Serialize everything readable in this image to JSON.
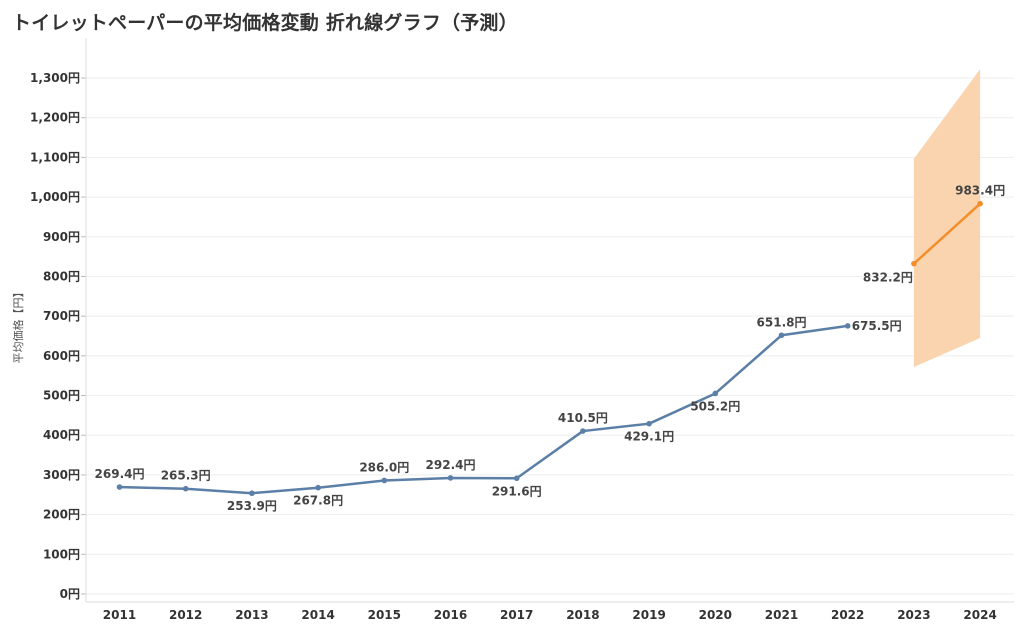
{
  "title": "トイレットペーパーの平均価格変動 折れ線グラフ（予測）",
  "colors": {
    "actual": "#5b7fa6",
    "forecast": "#f28e2b",
    "band": "#f9cfa5",
    "grid": "#eeeeee",
    "text": "#333333"
  },
  "chart_data": {
    "type": "line",
    "title": "トイレットペーパーの平均価格変動 折れ線グラフ（予測）",
    "xlabel": "",
    "ylabel": "平均価格【円】",
    "ylim": [
      0,
      1300
    ],
    "yticks": [
      0,
      100,
      200,
      300,
      400,
      500,
      600,
      700,
      800,
      900,
      1000,
      1100,
      1200,
      1300
    ],
    "ytick_labels": [
      "0円",
      "100円",
      "200円",
      "300円",
      "400円",
      "500円",
      "600円",
      "700円",
      "800円",
      "900円",
      "1,000円",
      "1,100円",
      "1,200円",
      "1,300円"
    ],
    "categories": [
      "2011",
      "2012",
      "2013",
      "2014",
      "2015",
      "2016",
      "2017",
      "2018",
      "2019",
      "2020",
      "2021",
      "2022",
      "2023",
      "2024"
    ],
    "grid": true,
    "series": [
      {
        "values": [
          269.4,
          265.3,
          253.9,
          267.8,
          286.0,
          292.4,
          291.6,
          410.5,
          429.1,
          505.2,
          651.8,
          675.5,
          null,
          null
        ],
        "labels": [
          "269.4円",
          "265.3円",
          "253.9円",
          "267.8円",
          "286.0円",
          "292.4円",
          "291.6円",
          "410.5円",
          "429.1円",
          "505.2円",
          "651.8円",
          "675.5円",
          "",
          ""
        ],
        "label_pos": [
          "above",
          "above",
          "below",
          "below",
          "above",
          "above",
          "below",
          "above",
          "below",
          "below",
          "above",
          "right",
          "",
          ""
        ]
      },
      {
        "values": [
          null,
          null,
          null,
          null,
          null,
          null,
          null,
          null,
          null,
          null,
          null,
          null,
          832.2,
          983.4
        ],
        "labels": [
          "",
          "",
          "",
          "",
          "",
          "",
          "",
          "",
          "",
          "",
          "",
          "",
          "832.2円",
          "983.4円"
        ],
        "label_pos": [
          "",
          "",
          "",
          "",
          "",
          "",
          "",
          "",
          "",
          "",
          "",
          "",
          "left",
          "above"
        ],
        "band_low": [
          null,
          null,
          null,
          null,
          null,
          null,
          null,
          null,
          null,
          null,
          null,
          null,
          572,
          645
        ],
        "band_high": [
          null,
          null,
          null,
          null,
          null,
          null,
          null,
          null,
          null,
          null,
          null,
          null,
          1097,
          1322
        ]
      }
    ]
  }
}
